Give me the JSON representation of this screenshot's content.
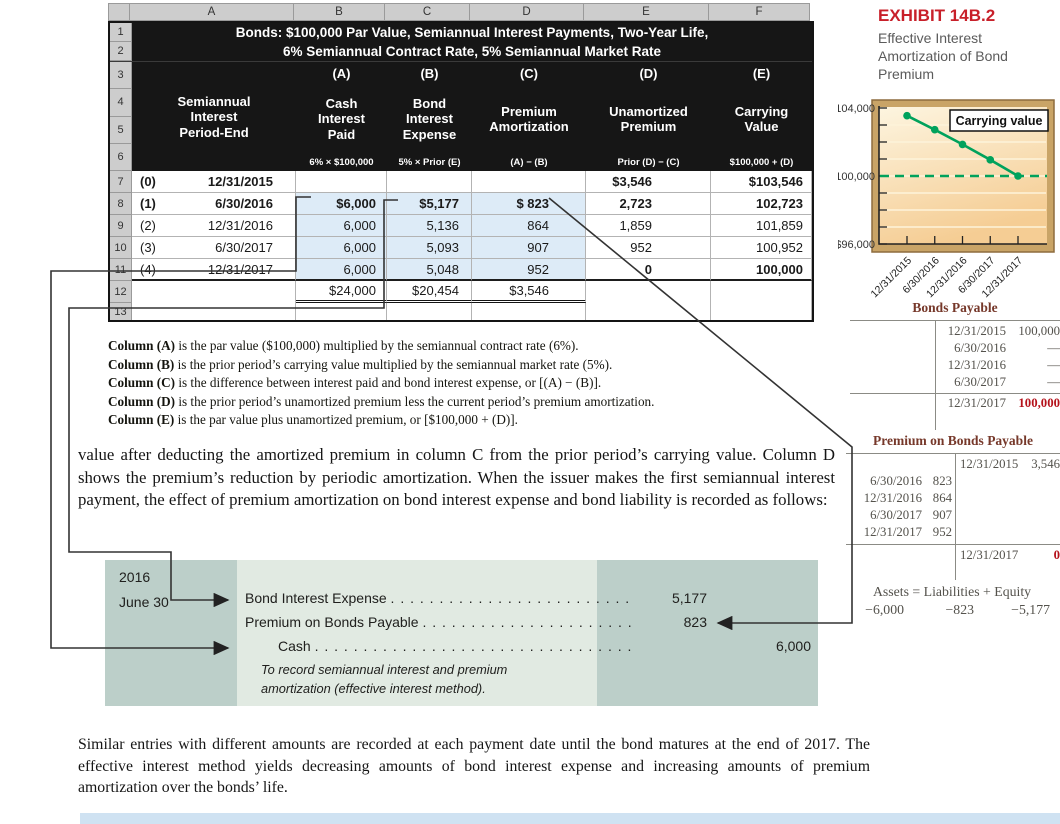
{
  "exhibit": {
    "label": "EXHIBIT 14B.2",
    "subtitle": "Effective Interest Amortization of Bond Premium",
    "accent_color": "#c8202a"
  },
  "spreadsheet": {
    "column_letters": [
      "A",
      "B",
      "C",
      "D",
      "E",
      "F"
    ],
    "row_numbers": [
      "1",
      "2",
      "3",
      "4",
      "5",
      "6",
      "7",
      "8",
      "9",
      "10",
      "11",
      "12",
      "13"
    ],
    "title_line1": "Bonds: $100,000 Par Value, Semiannual Interest Payments, Two-Year Life,",
    "title_line2": "6% Semiannual Contract Rate, 5% Semiannual Market Rate",
    "headers": [
      {
        "letter": "",
        "title": "Semiannual\nInterest\nPeriod-End",
        "formula": ""
      },
      {
        "letter": "(A)",
        "title": "Cash\nInterest\nPaid",
        "formula": "6% × $100,000"
      },
      {
        "letter": "(B)",
        "title": "Bond\nInterest\nExpense",
        "formula": "5% × Prior (E)"
      },
      {
        "letter": "(C)",
        "title": "Premium\nAmortization",
        "formula": "(A) − (B)"
      },
      {
        "letter": "(D)",
        "title": "Unamortized\nPremium",
        "formula": "Prior (D) − (C)"
      },
      {
        "letter": "(E)",
        "title": "Carrying\nValue",
        "formula": "$100,000 + (D)"
      }
    ],
    "rows": [
      {
        "row_number": "7",
        "period": "(0)",
        "date": "12/31/2015",
        "date_bold": true,
        "cells": [
          "",
          "",
          "",
          "$3,546",
          "$103,546"
        ],
        "bold_cells": [
          3,
          4
        ]
      },
      {
        "row_number": "8",
        "period": "(1)",
        "date": "6/30/2016",
        "date_bold": true,
        "cells": [
          "$6,000",
          "$5,177",
          "$ 823",
          "2,723",
          "102,723"
        ],
        "bold_cells": [
          0,
          1,
          2,
          3,
          4
        ]
      },
      {
        "row_number": "9",
        "period": "(2)",
        "date": "12/31/2016",
        "date_bold": false,
        "cells": [
          "6,000",
          "5,136",
          "864",
          "1,859",
          "101,859"
        ],
        "bold_cells": []
      },
      {
        "row_number": "10",
        "period": "(3)",
        "date": "6/30/2017",
        "date_bold": false,
        "cells": [
          "6,000",
          "5,093",
          "907",
          "952",
          "100,952"
        ],
        "bold_cells": []
      },
      {
        "row_number": "11",
        "period": "(4)",
        "date": "12/31/2017",
        "date_bold": false,
        "cells": [
          "6,000",
          "5,048",
          "952",
          "0",
          "100,000"
        ],
        "bold_cells": [
          3,
          4
        ]
      }
    ],
    "totals": [
      "$24,000",
      "$20,454",
      "$3,546"
    ]
  },
  "chart_data": {
    "type": "line",
    "series_label": "Carrying value",
    "x": [
      "12/31/2015",
      "6/30/2016",
      "12/31/2016",
      "6/30/2017",
      "12/31/2017"
    ],
    "values": [
      103546,
      102723,
      101859,
      100952,
      100000
    ],
    "ylim": [
      96000,
      104000
    ],
    "gridline_interval": 1000,
    "ytick_labels": [
      "$104,000",
      "$100,000",
      "$96,000"
    ],
    "reference_line": 100000,
    "line_color": "#00a25c",
    "legend_position": "top-right",
    "grid": true
  },
  "notes": [
    {
      "bold": "Column (A)",
      "text": " is the par value ($100,000) multiplied by the semiannual contract rate (6%)."
    },
    {
      "bold": "Column (B)",
      "text": " is the prior period’s carrying value multiplied by the semiannual market rate (5%)."
    },
    {
      "bold": "Column (C)",
      "text": " is the difference between interest paid and bond interest expense, or [(A) − (B)]."
    },
    {
      "bold": "Column (D)",
      "text": " is the prior period’s unamortized premium less the current period’s premium amortization."
    },
    {
      "bold": "Column (E)",
      "text": " is the par value plus unamortized premium, or [$100,000 + (D)]."
    }
  ],
  "paragraph1": "value after deducting the amortized premium in column C from the prior period’s carrying value. Column D shows the premium’s reduction by periodic amortization. When the issuer makes the first semiannual interest payment, the effect of premium amortization on bond interest expense and bond liability is recorded as follows:",
  "journal": {
    "year": "2016",
    "date": "June 30",
    "lines": [
      {
        "account": "Bond Interest Expense ",
        "leader": ". . . . . . . . . . . . . . . . . . . . . . . . .",
        "debit": "5,177",
        "credit": ""
      },
      {
        "account": "Premium on Bonds Payable ",
        "leader": ". . . . . . . . . . . . . . . . . . . . . .",
        "debit": "823",
        "credit": ""
      },
      {
        "account": "Cash ",
        "leader": ". . . . . . . . . . . . . . . . . . . . . . . . . . . . . . . . .",
        "debit": "",
        "credit": "6,000"
      }
    ],
    "note_line1": "To record semiannual interest and premium",
    "note_line2": "amortization (effective interest method)."
  },
  "ledger": {
    "bonds_payable": {
      "title": "Bonds Payable",
      "credits": [
        {
          "date": "12/31/2015",
          "value": "100,000"
        },
        {
          "date": "6/30/2016",
          "value": "—"
        },
        {
          "date": "12/31/2016",
          "value": "—"
        },
        {
          "date": "6/30/2017",
          "value": "—"
        }
      ],
      "balance": {
        "date": "12/31/2017",
        "value": "100,000"
      }
    },
    "premium_on_bonds_payable": {
      "title": "Premium on Bonds Payable",
      "credit_first": {
        "date": "12/31/2015",
        "value": "3,546"
      },
      "debits": [
        {
          "date": "6/30/2016",
          "value": "823"
        },
        {
          "date": "12/31/2016",
          "value": "864"
        },
        {
          "date": "6/30/2017",
          "value": "907"
        },
        {
          "date": "12/31/2017",
          "value": "952"
        }
      ],
      "balance": {
        "date": "12/31/2017",
        "value": "0"
      }
    }
  },
  "equation": {
    "header": "Assets = Liabilities + Equity",
    "values": [
      "−6,000",
      "−823",
      "−5,177"
    ]
  },
  "paragraph2": "Similar entries with different amounts are recorded at each payment date until the bond matures at the end of 2017. The effective interest method yields decreasing amounts of bond interest expense and increasing amounts of premium amortization over the bonds’ life."
}
